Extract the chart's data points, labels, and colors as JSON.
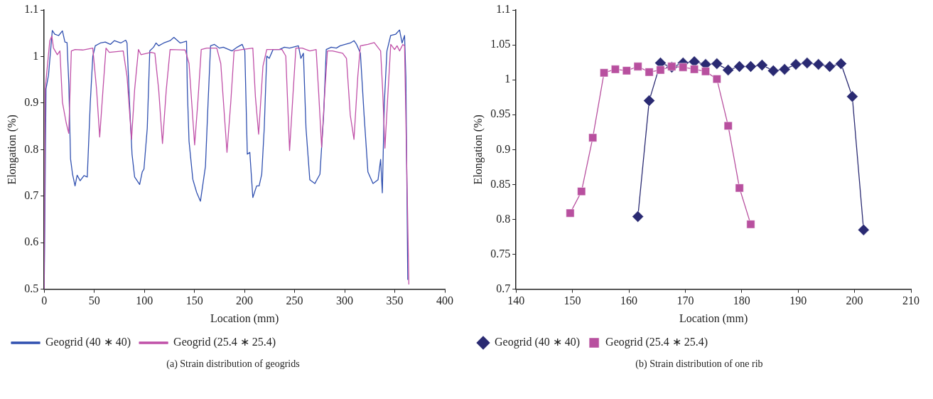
{
  "chart_data": [
    {
      "type": "line",
      "xlabel": "Location (mm)",
      "ylabel": "Elongation (%)",
      "xlim": [
        0,
        400
      ],
      "xticks": [
        0,
        50,
        100,
        150,
        200,
        250,
        300,
        350,
        400
      ],
      "ylim": [
        0.5,
        1.1
      ],
      "yticks": [
        0.5,
        0.6,
        0.7,
        0.8,
        0.9,
        1,
        1.1
      ],
      "grid": false,
      "legend": "bottom",
      "marker": "none",
      "annotations": [
        "(a)  Strain distribution of geogrids"
      ],
      "series": [
        {
          "name": "Geogrid (40 ∗ 40)",
          "color": "#3050b0",
          "x": [
            0,
            1.8,
            4.3,
            8.1,
            10.6,
            14.4,
            18.2,
            20.7,
            22.8,
            24.6,
            26.3,
            28.3,
            30.8,
            32.9,
            35.9,
            39.7,
            43,
            46,
            48.5,
            51,
            56.1,
            61,
            66,
            70,
            76.4,
            81.4,
            82.7,
            85.2,
            87.7,
            90.3,
            95.3,
            97.9,
            99.6,
            102.9,
            105.4,
            109.2,
            111.7,
            114.3,
            119.3,
            125.7,
            129.5,
            135.8,
            142.1,
            142.9,
            144.6,
            148.4,
            152.2,
            156,
            161,
            163.6,
            166.1,
            170,
            175,
            178.8,
            187.6,
            192.7,
            197.7,
            200.3,
            202.8,
            205.3,
            208.3,
            212.1,
            214.6,
            217.2,
            219.7,
            222.2,
            224.7,
            228.5,
            234.8,
            239.9,
            244.9,
            253.8,
            256.3,
            258.8,
            261.4,
            265.2,
            270.2,
            275.3,
            279,
            281.6,
            286.6,
            291.7,
            295.5,
            300.5,
            305.6,
            309.3,
            311.9,
            315.7,
            319.4,
            323.2,
            328.3,
            333.3,
            335.9,
            337.6,
            339.6,
            342.2,
            345.9,
            351,
            354.8,
            357.3,
            359.8,
            361.1,
            363
          ],
          "values": [
            0.5,
            0.93,
            0.96,
            1.056,
            1.048,
            1.045,
            1.055,
            1.031,
            1.03,
            0.94,
            0.78,
            0.747,
            0.722,
            0.745,
            0.733,
            0.744,
            0.741,
            0.9,
            1.0,
            1.023,
            1.029,
            1.031,
            1.026,
            1.034,
            1.029,
            1.035,
            1.029,
            0.9,
            0.79,
            0.741,
            0.725,
            0.752,
            0.758,
            0.846,
            1.012,
            1.02,
            1.029,
            1.023,
            1.029,
            1.034,
            1.041,
            1.029,
            1.033,
            0.93,
            0.818,
            0.736,
            0.708,
            0.689,
            0.764,
            0.9,
            1.023,
            1.026,
            1.018,
            1.02,
            1.012,
            1.02,
            1.026,
            1.012,
            0.79,
            0.794,
            0.697,
            0.722,
            0.722,
            0.747,
            0.846,
            1.001,
            0.996,
            1.015,
            1.015,
            1.02,
            1.018,
            1.023,
            0.996,
            1.007,
            0.846,
            0.735,
            0.727,
            0.747,
            0.874,
            1.015,
            1.02,
            1.018,
            1.023,
            1.026,
            1.029,
            1.034,
            1.026,
            1.007,
            0.874,
            0.752,
            0.727,
            0.735,
            0.779,
            0.707,
            0.9,
            1.012,
            1.045,
            1.048,
            1.057,
            1.029,
            1.045,
            0.956,
            0.52
          ]
        },
        {
          "name": "Geogrid (25.4 ∗ 25.4)",
          "color": "#c050a8",
          "x": [
            0,
            1,
            5.6,
            7.6,
            9.3,
            13.1,
            15.7,
            18.2,
            22,
            24.5,
            27.1,
            30.8,
            38.4,
            48.5,
            52.3,
            55.4,
            58.7,
            61.7,
            65,
            78.9,
            82.7,
            87.2,
            90.3,
            94.1,
            96.6,
            106.7,
            110.5,
            114.3,
            118.1,
            121.9,
            125.7,
            140.8,
            144.6,
            150.2,
            153.4,
            156.8,
            162.3,
            172.3,
            176.3,
            182.5,
            186.3,
            189.6,
            197.7,
            208.3,
            210.9,
            214.1,
            218.4,
            222.2,
            237.4,
            241.2,
            245,
            248.7,
            251.3,
            257.6,
            265.2,
            271.5,
            274,
            277,
            280.3,
            282.8,
            287.9,
            298,
            301.8,
            305.6,
            309.3,
            313.1,
            315.7,
            323.2,
            329.5,
            335.9,
            337.9,
            340.2,
            343,
            346,
            349.8,
            352.3,
            354.8,
            358.1,
            359.8,
            364.1
          ],
          "values": [
            0.5,
            0.93,
            1.034,
            1.044,
            1.018,
            1.004,
            1.012,
            0.902,
            0.857,
            0.835,
            1.012,
            1.015,
            1.014,
            1.018,
            0.929,
            0.827,
            0.929,
            1.018,
            1.009,
            1.012,
            0.957,
            0.822,
            0.929,
            1.015,
            1.004,
            1.009,
            1.007,
            0.929,
            0.813,
            0.929,
            1.015,
            1.014,
            0.985,
            0.81,
            0.902,
            1.015,
            1.018,
            1.018,
            0.985,
            0.794,
            0.902,
            1.012,
            1.015,
            1.018,
            0.913,
            0.833,
            0.979,
            1.015,
            1.015,
            1.001,
            0.798,
            0.929,
            1.018,
            1.018,
            1.012,
            1.015,
            0.924,
            0.805,
            0.929,
            1.012,
            1.012,
            1.007,
            0.996,
            0.874,
            0.822,
            0.957,
            1.023,
            1.026,
            1.03,
            1.012,
            0.929,
            0.803,
            0.913,
            1.026,
            1.015,
            1.023,
            1.012,
            1.026,
            1.023,
            0.51
          ]
        }
      ]
    },
    {
      "type": "line",
      "xlabel": "Location (mm)",
      "ylabel": "Elongation (%)",
      "xlim": [
        140,
        210
      ],
      "xticks": [
        140,
        150,
        160,
        170,
        180,
        190,
        200,
        210
      ],
      "ylim": [
        0.7,
        1.1
      ],
      "yticks": [
        0.7,
        0.75,
        0.8,
        0.85,
        0.9,
        0.95,
        1,
        1.05,
        1.1
      ],
      "grid": false,
      "legend": "bottom",
      "annotations": [
        "(b)  Strain distribution of one rib"
      ],
      "series": [
        {
          "name": "Geogrid (40 ∗ 40)",
          "color": "#2a2a72",
          "marker": "diamond",
          "x": [
            161.6,
            163.6,
            165.6,
            167.6,
            169.6,
            171.6,
            173.6,
            175.6,
            177.6,
            179.6,
            181.6,
            183.6,
            185.6,
            187.6,
            189.6,
            191.6,
            193.6,
            195.6,
            197.6,
            199.6,
            201.6
          ],
          "values": [
            0.804,
            0.97,
            1.024,
            1.018,
            1.024,
            1.026,
            1.022,
            1.023,
            1.014,
            1.019,
            1.019,
            1.021,
            1.013,
            1.015,
            1.022,
            1.024,
            1.022,
            1.019,
            1.023,
            0.976,
            0.785
          ]
        },
        {
          "name": "Geogrid (25.4 ∗ 25.4)",
          "color": "#b8509f",
          "marker": "square",
          "x": [
            149.6,
            151.6,
            153.6,
            155.6,
            157.6,
            159.6,
            161.6,
            163.6,
            165.6,
            167.6,
            169.6,
            171.6,
            173.6,
            175.6,
            177.6,
            179.6,
            181.6
          ],
          "values": [
            0.809,
            0.84,
            0.917,
            1.01,
            1.015,
            1.013,
            1.019,
            1.011,
            1.014,
            1.019,
            1.018,
            1.015,
            1.012,
            1.001,
            0.934,
            0.845,
            0.793
          ]
        }
      ]
    }
  ]
}
